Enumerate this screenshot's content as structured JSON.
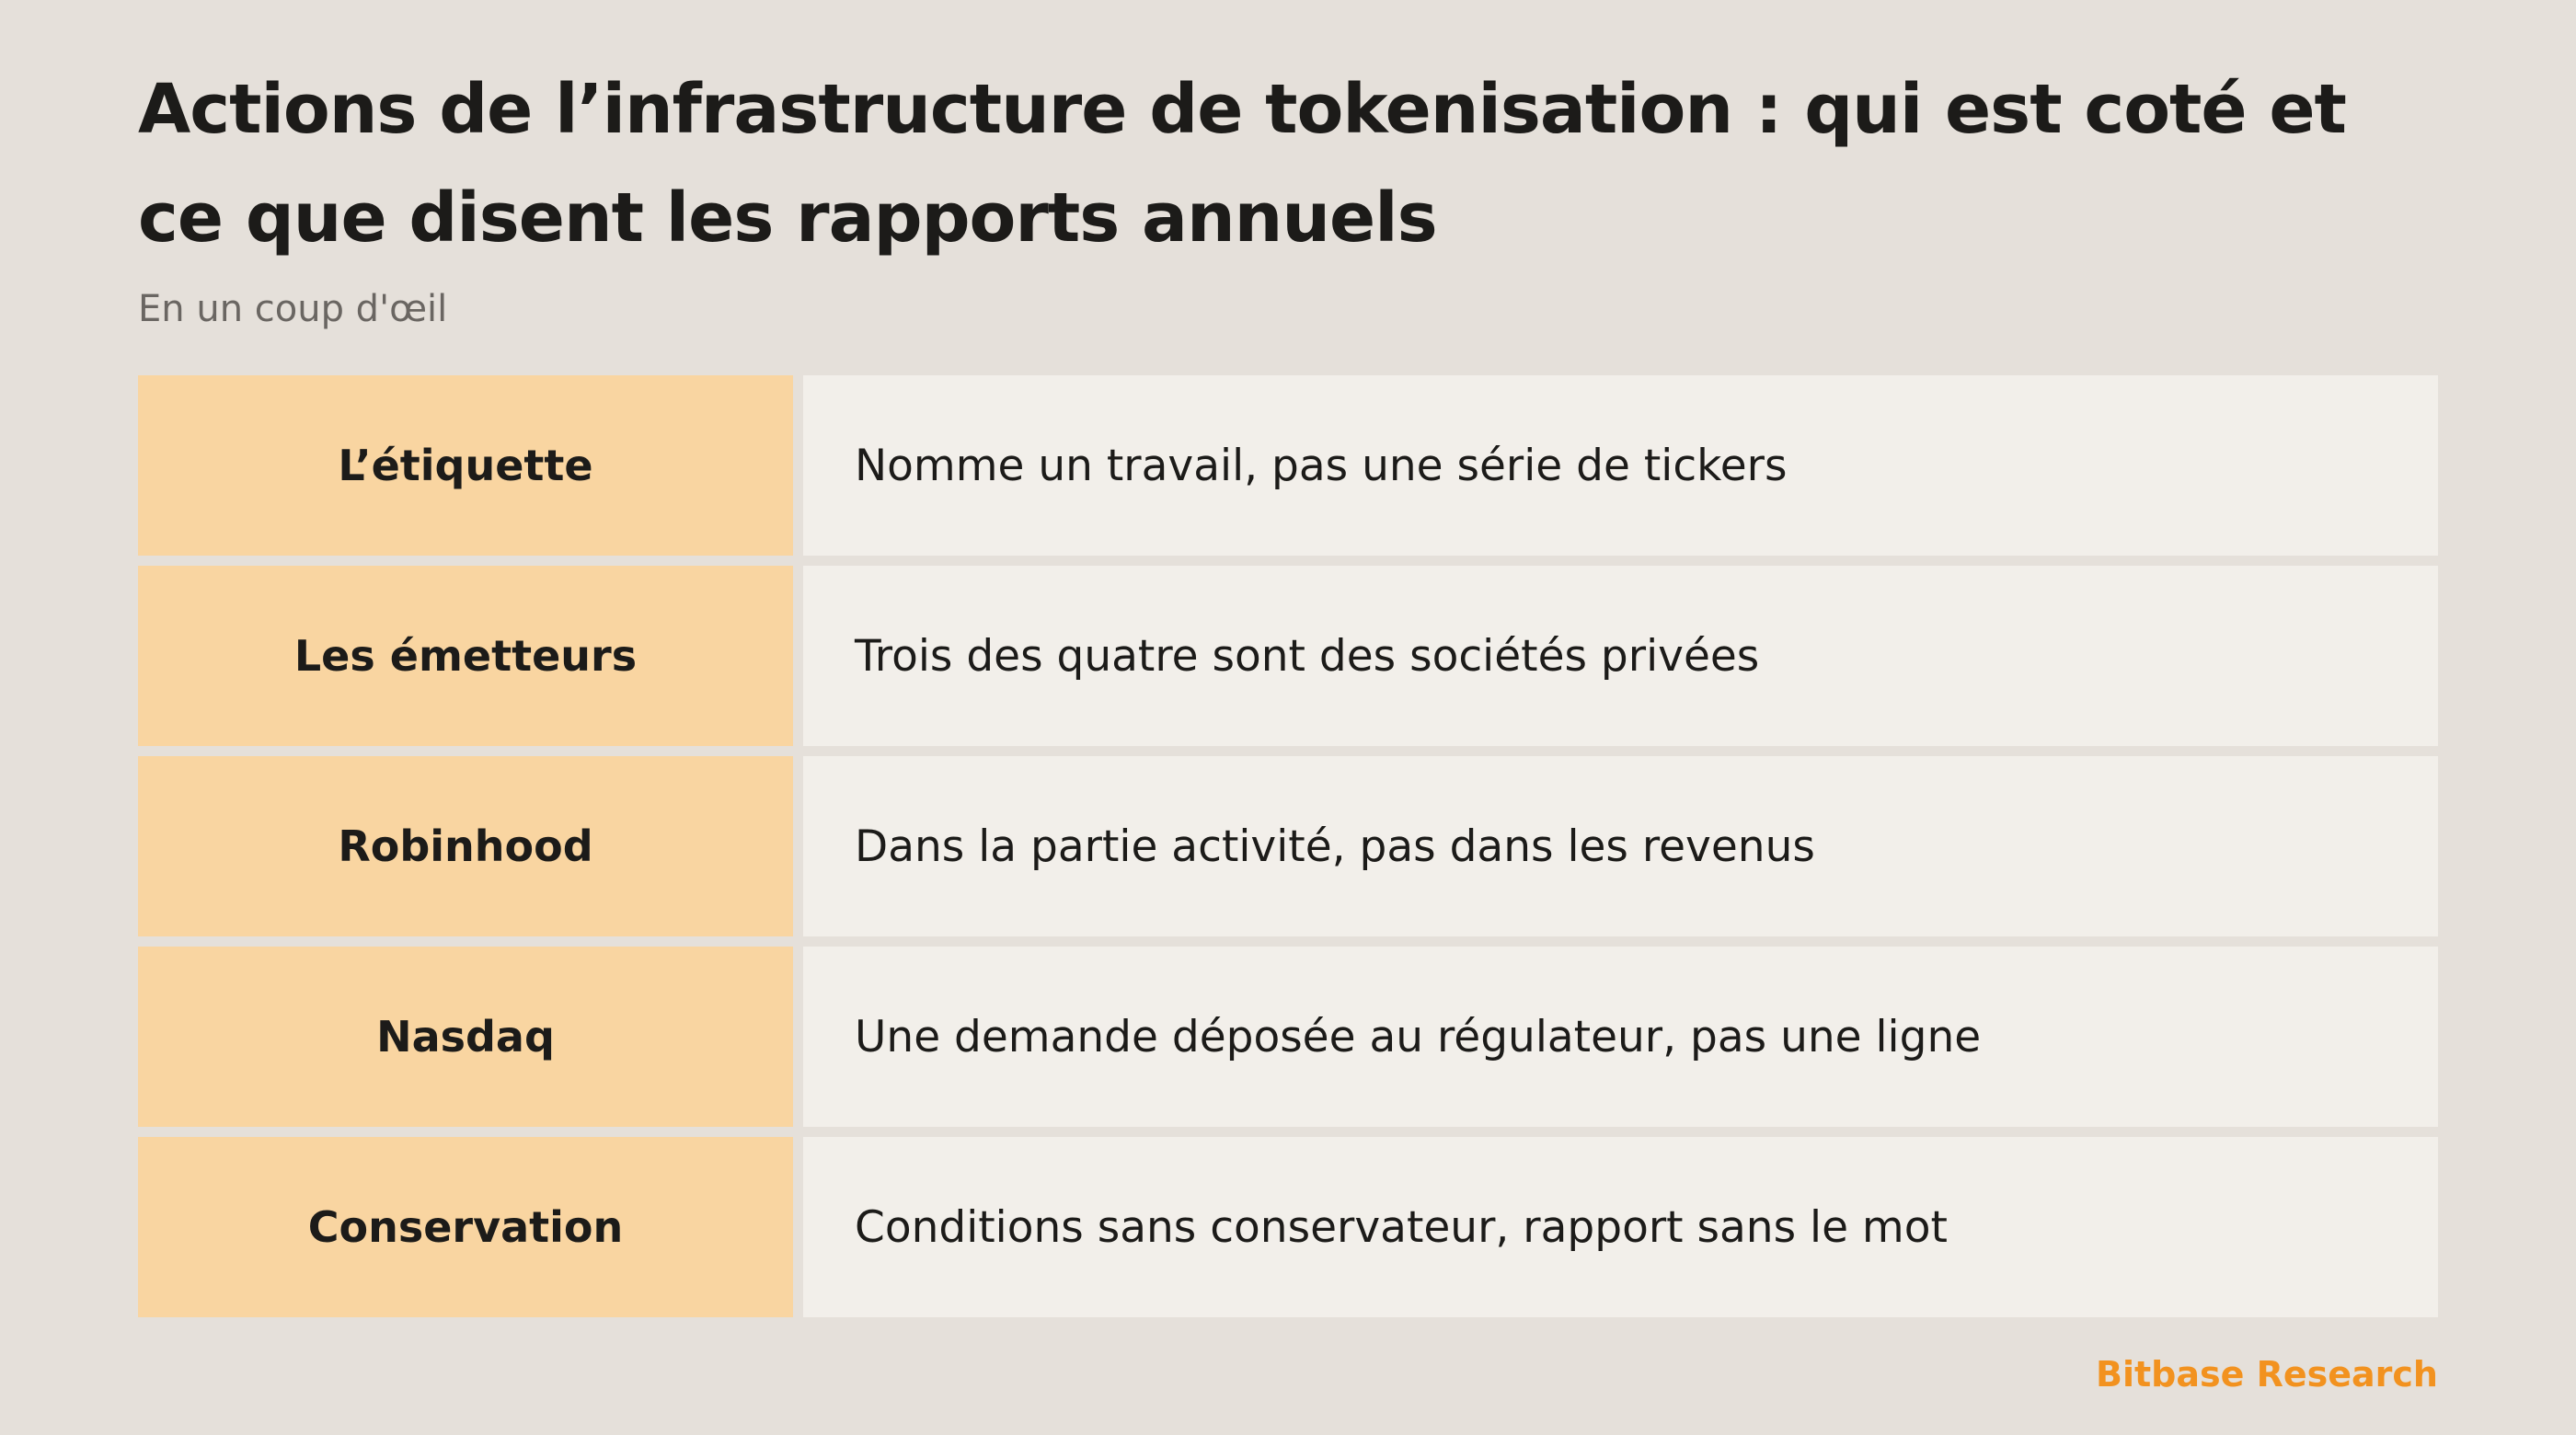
{
  "header": {
    "title": "Actions de l’infrastructure de tokenisation : qui est coté et ce que disent les rapports annuels",
    "subtitle": "En un coup d'œil"
  },
  "table": {
    "rows": [
      {
        "label": "L’étiquette",
        "description": "Nomme un travail, pas une série de tickers"
      },
      {
        "label": "Les émetteurs",
        "description": "Trois des quatre sont des sociétés privées"
      },
      {
        "label": "Robinhood",
        "description": "Dans la partie activité, pas dans les revenus"
      },
      {
        "label": "Nasdaq",
        "description": "Une demande déposée au régulateur, pas une ligne"
      },
      {
        "label": "Conservation",
        "description": "Conditions sans conservateur, rapport sans le mot"
      }
    ]
  },
  "footer": {
    "brand": "Bitbase Research"
  },
  "colors": {
    "background": "#e5e0da",
    "label_cell": "#f9d5a1",
    "description_cell": "#f2efea",
    "brand_accent": "#f2921f"
  }
}
